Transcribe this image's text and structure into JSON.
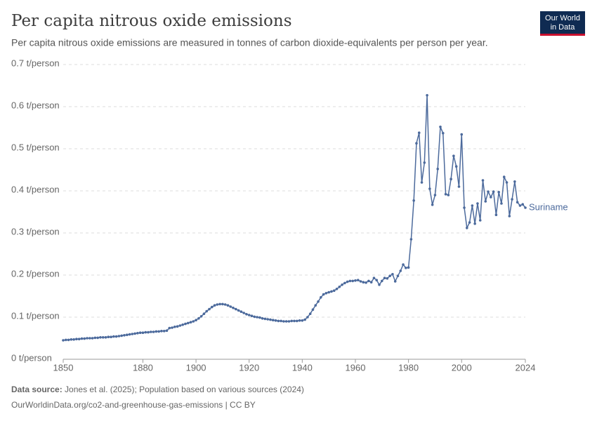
{
  "logo": [
    "Our World",
    "in Data"
  ],
  "chart_data": {
    "type": "line",
    "title": "Per capita nitrous oxide emissions",
    "subtitle": "Per capita nitrous oxide emissions are measured in tonnes of carbon dioxide-equivalents per person per year.",
    "source_label": "Data source:",
    "source_text": "Jones et al. (2025); Population based on various sources (2024)",
    "footer": "OurWorldinData.org/co2-and-greenhouse-gas-emissions | CC BY",
    "x": [
      1850,
      1851,
      1852,
      1853,
      1854,
      1855,
      1856,
      1857,
      1858,
      1859,
      1860,
      1861,
      1862,
      1863,
      1864,
      1865,
      1866,
      1867,
      1868,
      1869,
      1870,
      1871,
      1872,
      1873,
      1874,
      1875,
      1876,
      1877,
      1878,
      1879,
      1880,
      1881,
      1882,
      1883,
      1884,
      1885,
      1886,
      1887,
      1888,
      1889,
      1890,
      1891,
      1892,
      1893,
      1894,
      1895,
      1896,
      1897,
      1898,
      1899,
      1900,
      1901,
      1902,
      1903,
      1904,
      1905,
      1906,
      1907,
      1908,
      1909,
      1910,
      1911,
      1912,
      1913,
      1914,
      1915,
      1916,
      1917,
      1918,
      1919,
      1920,
      1921,
      1922,
      1923,
      1924,
      1925,
      1926,
      1927,
      1928,
      1929,
      1930,
      1931,
      1932,
      1933,
      1934,
      1935,
      1936,
      1937,
      1938,
      1939,
      1940,
      1941,
      1942,
      1943,
      1944,
      1945,
      1946,
      1947,
      1948,
      1949,
      1950,
      1951,
      1952,
      1953,
      1954,
      1955,
      1956,
      1957,
      1958,
      1959,
      1960,
      1961,
      1962,
      1963,
      1964,
      1965,
      1966,
      1967,
      1968,
      1969,
      1970,
      1971,
      1972,
      1973,
      1974,
      1975,
      1976,
      1977,
      1978,
      1979,
      1980,
      1981,
      1982,
      1983,
      1984,
      1985,
      1986,
      1987,
      1988,
      1989,
      1990,
      1991,
      1992,
      1993,
      1994,
      1995,
      1996,
      1997,
      1998,
      1999,
      2000,
      2001,
      2002,
      2003,
      2004,
      2005,
      2006,
      2007,
      2008,
      2009,
      2010,
      2011,
      2012,
      2013,
      2014,
      2015,
      2016,
      2017,
      2018,
      2019,
      2020,
      2021,
      2022,
      2023,
      2024
    ],
    "series": [
      {
        "name": "Suriname",
        "color": "#4c6a9c",
        "values": [
          0.045,
          0.046,
          0.046,
          0.047,
          0.047,
          0.048,
          0.048,
          0.049,
          0.049,
          0.05,
          0.05,
          0.05,
          0.051,
          0.051,
          0.052,
          0.052,
          0.052,
          0.053,
          0.053,
          0.054,
          0.054,
          0.055,
          0.056,
          0.057,
          0.058,
          0.059,
          0.06,
          0.061,
          0.062,
          0.063,
          0.063,
          0.064,
          0.064,
          0.065,
          0.065,
          0.066,
          0.066,
          0.067,
          0.067,
          0.068,
          0.074,
          0.075,
          0.077,
          0.078,
          0.08,
          0.082,
          0.084,
          0.086,
          0.088,
          0.09,
          0.093,
          0.097,
          0.102,
          0.108,
          0.114,
          0.119,
          0.124,
          0.128,
          0.13,
          0.131,
          0.131,
          0.13,
          0.128,
          0.125,
          0.122,
          0.119,
          0.116,
          0.113,
          0.11,
          0.107,
          0.105,
          0.103,
          0.101,
          0.1,
          0.099,
          0.097,
          0.096,
          0.095,
          0.094,
          0.093,
          0.092,
          0.091,
          0.091,
          0.09,
          0.09,
          0.09,
          0.091,
          0.091,
          0.091,
          0.092,
          0.092,
          0.094,
          0.1,
          0.108,
          0.118,
          0.128,
          0.137,
          0.147,
          0.154,
          0.157,
          0.159,
          0.161,
          0.163,
          0.167,
          0.172,
          0.177,
          0.181,
          0.184,
          0.186,
          0.186,
          0.187,
          0.188,
          0.185,
          0.183,
          0.182,
          0.186,
          0.183,
          0.193,
          0.188,
          0.177,
          0.186,
          0.193,
          0.192,
          0.198,
          0.202,
          0.185,
          0.198,
          0.21,
          0.225,
          0.217,
          0.218,
          0.285,
          0.377,
          0.513,
          0.538,
          0.42,
          0.467,
          0.627,
          0.405,
          0.367,
          0.39,
          0.452,
          0.552,
          0.537,
          0.392,
          0.39,
          0.428,
          0.483,
          0.458,
          0.41,
          0.534,
          0.36,
          0.312,
          0.325,
          0.365,
          0.322,
          0.37,
          0.33,
          0.425,
          0.375,
          0.398,
          0.385,
          0.398,
          0.343,
          0.397,
          0.37,
          0.433,
          0.42,
          0.34,
          0.38,
          0.422,
          0.373,
          0.365,
          0.368,
          0.36
        ]
      }
    ],
    "xlim": [
      1850,
      2024
    ],
    "xticks": [
      1850,
      1880,
      1900,
      1920,
      1940,
      1960,
      1980,
      2000,
      2024
    ],
    "ylim": [
      0,
      0.7
    ],
    "yticks": [
      {
        "value": 0,
        "label": "0 t/person"
      },
      {
        "value": 0.1,
        "label": "0.1 t/person"
      },
      {
        "value": 0.2,
        "label": "0.2 t/person"
      },
      {
        "value": 0.3,
        "label": "0.3 t/person"
      },
      {
        "value": 0.4,
        "label": "0.4 t/person"
      },
      {
        "value": 0.5,
        "label": "0.5 t/person"
      },
      {
        "value": 0.6,
        "label": "0.6 t/person"
      },
      {
        "value": 0.7,
        "label": "0.7 t/person"
      }
    ],
    "grid": true
  }
}
